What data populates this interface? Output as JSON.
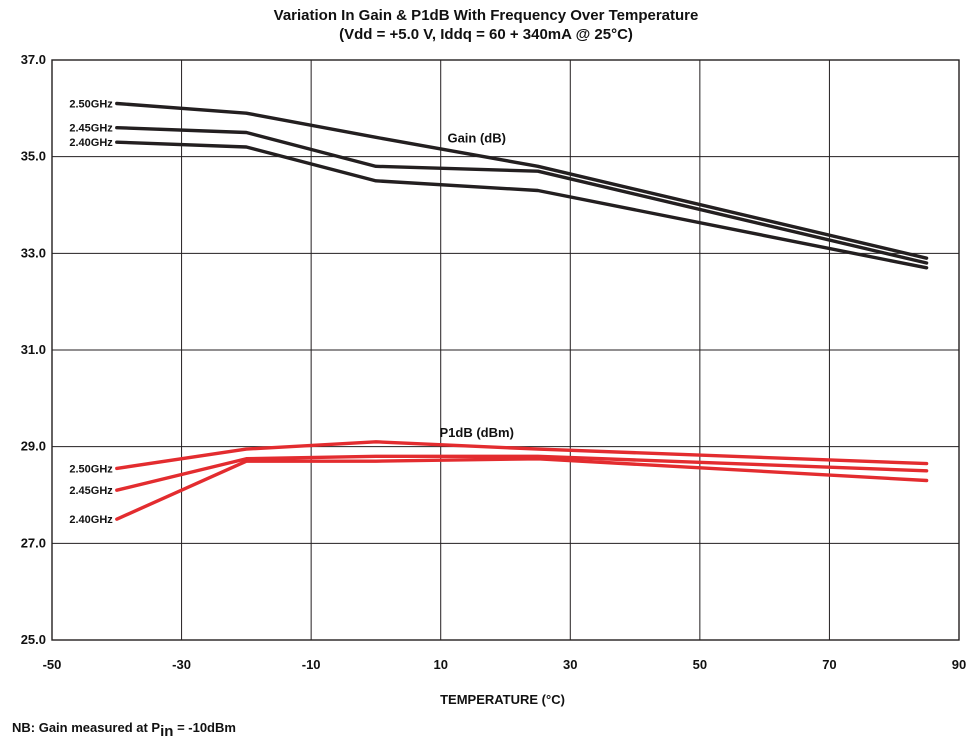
{
  "chart_data": {
    "type": "line",
    "title": "Variation In Gain & P1dB With Frequency Over Temperature",
    "subtitle": "(Vdd = +5.0 V, Iddq = 60 + 340mA @ 25°C)",
    "xlabel": "TEMPERATURE (°C)",
    "ylabel": "",
    "xlim": [
      -50,
      90
    ],
    "ylim": [
      25.0,
      37.0
    ],
    "x_ticks": [
      "-50",
      "-30",
      "-10",
      "10",
      "30",
      "50",
      "70",
      "90"
    ],
    "y_ticks": [
      "25.0",
      "27.0",
      "29.0",
      "31.0",
      "33.0",
      "35.0",
      "37.0"
    ],
    "grid": true,
    "groups": [
      {
        "label": "Gain (dB)",
        "label_at": [
          10,
          35.4
        ],
        "color": "#231f20",
        "series": [
          {
            "name": "2.50GHz",
            "x": [
              -40,
              -20,
              0,
              25,
              85
            ],
            "y": [
              36.1,
              35.9,
              35.4,
              34.8,
              32.9
            ]
          },
          {
            "name": "2.45GHz",
            "x": [
              -40,
              -20,
              0,
              25,
              85
            ],
            "y": [
              35.6,
              35.5,
              34.8,
              34.7,
              32.8
            ]
          },
          {
            "name": "2.40GHz",
            "x": [
              -40,
              -20,
              0,
              25,
              85
            ],
            "y": [
              35.3,
              35.2,
              34.5,
              34.3,
              32.7
            ]
          }
        ]
      },
      {
        "label": "P1dB (dBm)",
        "label_at": [
          10,
          29.3
        ],
        "color": "#e32c2f",
        "series": [
          {
            "name": "2.50GHz",
            "x": [
              -40,
              -20,
              0,
              25,
              85
            ],
            "y": [
              28.55,
              28.95,
              29.1,
              28.95,
              28.65
            ]
          },
          {
            "name": "2.45GHz",
            "x": [
              -40,
              -20,
              0,
              25,
              85
            ],
            "y": [
              28.1,
              28.75,
              28.8,
              28.8,
              28.5
            ]
          },
          {
            "name": "2.40GHz",
            "x": [
              -40,
              -20,
              0,
              25,
              85
            ],
            "y": [
              27.5,
              28.7,
              28.7,
              28.75,
              28.3
            ]
          }
        ]
      }
    ]
  },
  "note": {
    "prefix": "NB: Gain measured at P",
    "subscript": "in",
    "suffix": " = -10dBm"
  }
}
